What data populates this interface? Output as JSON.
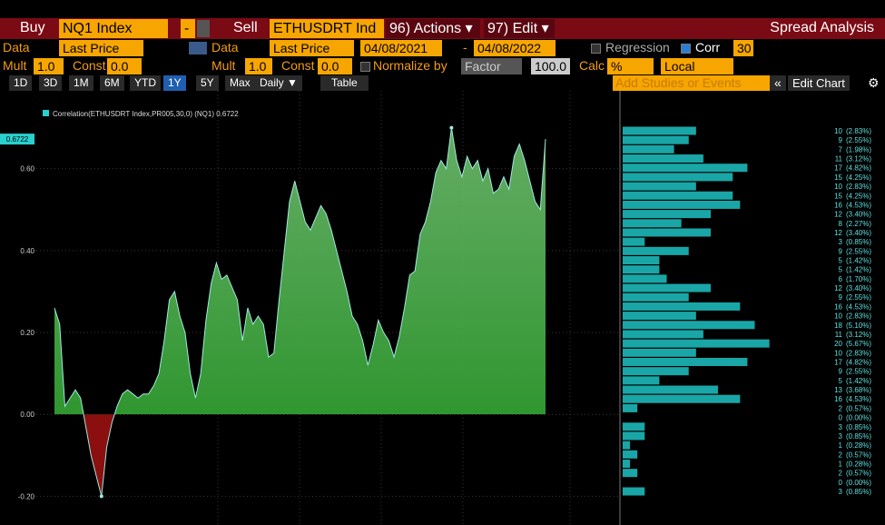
{
  "toolbar": {
    "buy": "Buy",
    "buy_ticker": "NQ1 Index",
    "buy_side": "-",
    "sell": "Sell",
    "sell_ticker": "ETHUSDRT Ind",
    "actions": "96) Actions ▾",
    "edit": "97) Edit ▾",
    "title": "Spread Analysis"
  },
  "settings": {
    "data1_label": "Data",
    "data1_value": "Last Price",
    "data2_label": "Data",
    "data2_value": "Last Price",
    "start_date": "04/08/2021",
    "date_sep": "-",
    "end_date": "04/08/2022",
    "regression": "Regression",
    "corr": "Corr",
    "corr_window": "30",
    "mult1_label": "Mult",
    "mult1": "1.0",
    "const1_label": "Const",
    "const1": "0.0",
    "mult2_label": "Mult",
    "mult2": "1.0",
    "const2_label": "Const",
    "const2": "0.0",
    "normalize": "Normalize by",
    "normalize_value": "Factor",
    "factor": "100.0",
    "calc": "Calc",
    "calc_value": "%",
    "currency": "Local"
  },
  "periods": [
    "1D",
    "3D",
    "1M",
    "6M",
    "YTD",
    "1Y",
    "5Y",
    "Max"
  ],
  "active_period": 5,
  "frequency": "Daily ▼",
  "table": "Table",
  "studies_placeholder": "Add Studies or Events",
  "collapse": "«",
  "edit_chart": "Edit Chart",
  "chart_data": [
    {
      "type": "area",
      "legend": "Correlation(ETHUSDRT Index,PR005,30,0) (NQ1) 0.6722",
      "last_value_label": "0.6722",
      "values": [
        0.26,
        0.22,
        0.02,
        0.04,
        0.06,
        0.04,
        -0.03,
        -0.1,
        -0.15,
        -0.2,
        -0.08,
        -0.02,
        0.02,
        0.05,
        0.06,
        0.05,
        0.04,
        0.05,
        0.05,
        0.07,
        0.1,
        0.18,
        0.28,
        0.3,
        0.24,
        0.2,
        0.1,
        0.04,
        0.1,
        0.23,
        0.32,
        0.37,
        0.33,
        0.34,
        0.31,
        0.28,
        0.18,
        0.26,
        0.22,
        0.24,
        0.22,
        0.14,
        0.15,
        0.28,
        0.4,
        0.52,
        0.57,
        0.52,
        0.47,
        0.45,
        0.48,
        0.51,
        0.49,
        0.45,
        0.4,
        0.35,
        0.3,
        0.24,
        0.22,
        0.18,
        0.12,
        0.17,
        0.23,
        0.2,
        0.18,
        0.14,
        0.19,
        0.26,
        0.34,
        0.35,
        0.44,
        0.47,
        0.52,
        0.59,
        0.62,
        0.6,
        0.7,
        0.62,
        0.58,
        0.63,
        0.6,
        0.62,
        0.57,
        0.6,
        0.54,
        0.55,
        0.58,
        0.55,
        0.63,
        0.66,
        0.62,
        0.57,
        0.52,
        0.5,
        0.6722
      ],
      "line_color": "#9fe8e0",
      "positive_color": "#1f8f1f",
      "negative_color": "#8b0f0f",
      "ylim": [
        -0.27,
        0.79
      ],
      "yticks": [
        {
          "value": 0.6,
          "label": "0.60"
        },
        {
          "value": 0.4,
          "label": "0.40"
        },
        {
          "value": 0.2,
          "label": "0.20"
        },
        {
          "value": 0,
          "label": "0.00"
        },
        {
          "value": -0.2,
          "label": "-0.20"
        }
      ],
      "grid": true
    },
    {
      "type": "hbar",
      "color": "#1aa6a6",
      "xlim": [
        0,
        24
      ],
      "values": [
        10,
        9,
        7,
        11,
        17,
        15,
        10,
        15,
        16,
        12,
        8,
        12,
        3,
        9,
        5,
        5,
        6,
        12,
        9,
        16,
        10,
        18,
        11,
        20,
        10,
        17,
        9,
        5,
        13,
        16,
        2,
        0,
        3,
        3,
        1,
        2,
        1,
        2,
        0,
        3
      ],
      "shares": [
        2.83,
        2.55,
        1.98,
        3.12,
        4.82,
        4.25,
        2.83,
        4.25,
        4.53,
        3.4,
        2.27,
        3.4,
        0.85,
        2.55,
        1.42,
        1.42,
        1.7,
        3.4,
        2.55,
        4.53,
        2.83,
        5.1,
        3.12,
        5.67,
        2.83,
        4.82,
        2.55,
        1.42,
        3.68,
        4.53,
        0.57,
        0.0,
        0.85,
        0.85,
        0.28,
        0.57,
        0.28,
        0.57,
        0.0,
        0.85
      ],
      "share_labels": [
        "(2.83%)",
        "(2.55%)",
        "(1.98%)",
        "(3.12%)",
        "(4.82%)",
        "(4.25%)",
        "(2.83%)",
        "(4.25%)",
        "(4.53%)",
        "(3.40%)",
        "(2.27%)",
        "(3.40%)",
        "(0.85%)",
        "(2.55%)",
        "(1.42%)",
        "(1.42%)",
        "(1.70%)",
        "(3.40%)",
        "(2.55%)",
        "(4.53%)",
        "(2.83%)",
        "(5.10%)",
        "(3.12%)",
        "(5.67%)",
        "(2.83%)",
        "(4.82%)",
        "(2.55%)",
        "(1.42%)",
        "(3.68%)",
        "(4.53%)",
        "(0.57%)",
        "(0.00%)",
        "(0.85%)",
        "(0.85%)",
        "(0.28%)",
        "(0.57%)",
        "(0.28%)",
        "(0.57%)",
        "(0.00%)",
        "(0.85%)"
      ]
    }
  ]
}
